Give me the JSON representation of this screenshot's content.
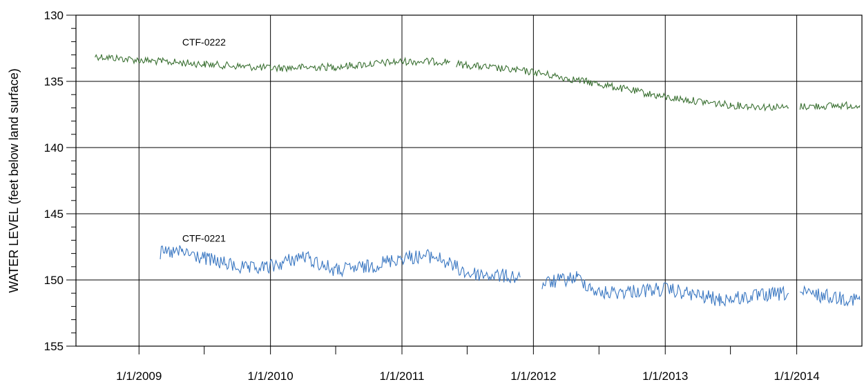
{
  "chart_data": {
    "type": "line",
    "title": "",
    "xlabel": "",
    "ylabel": "WATER LEVEL (feet below land surface)",
    "y_inverted": true,
    "ylim": [
      130,
      155
    ],
    "xlim": [
      "2008-07-10",
      "2014-07-01"
    ],
    "grid": true,
    "legend": "none",
    "y_ticks": [
      130,
      135,
      140,
      145,
      150,
      155
    ],
    "x_ticks": [
      {
        "label": "1/1/2009",
        "date": "2009-01-01"
      },
      {
        "label": "1/1/2010",
        "date": "2010-01-01"
      },
      {
        "label": "1/1/2011",
        "date": "2011-01-01"
      },
      {
        "label": "1/1/2012",
        "date": "2012-01-01"
      },
      {
        "label": "1/1/2013",
        "date": "2013-01-01"
      },
      {
        "label": "1/1/2014",
        "date": "2014-01-01"
      }
    ],
    "series": [
      {
        "name": "CTF-0222",
        "color": "#3a7032",
        "label_at": {
          "date": "2009-05-01",
          "value": 132.3
        },
        "segments": [
          [
            [
              "2008-09-01",
              133.1
            ],
            [
              "2009-01-01",
              133.4
            ],
            [
              "2009-07-01",
              133.7
            ],
            [
              "2010-01-01",
              134.0
            ],
            [
              "2010-07-01",
              133.9
            ],
            [
              "2011-01-01",
              133.5
            ],
            [
              "2011-05-15",
              133.5
            ]
          ],
          [
            [
              "2011-06-01",
              133.7
            ],
            [
              "2012-01-01",
              134.3
            ],
            [
              "2012-07-01",
              135.2
            ],
            [
              "2013-01-01",
              136.2
            ],
            [
              "2013-07-01",
              136.8
            ],
            [
              "2013-12-10",
              137.0
            ]
          ],
          [
            [
              "2014-01-10",
              136.9
            ],
            [
              "2014-06-25",
              136.8
            ]
          ]
        ]
      },
      {
        "name": "CTF-0221",
        "color": "#3b78c2",
        "label_at": {
          "date": "2009-05-01",
          "value": 147.1
        },
        "segments": [
          [
            [
              "2009-03-01",
              148.0
            ],
            [
              "2009-05-01",
              147.9
            ],
            [
              "2009-08-01",
              148.6
            ],
            [
              "2009-11-01",
              149.2
            ],
            [
              "2010-01-01",
              149.0
            ],
            [
              "2010-04-01",
              148.2
            ],
            [
              "2010-07-01",
              149.3
            ],
            [
              "2010-10-01",
              149.0
            ],
            [
              "2011-01-01",
              148.3
            ],
            [
              "2011-04-01",
              148.2
            ],
            [
              "2011-07-01",
              149.5
            ],
            [
              "2011-11-25",
              149.8
            ]
          ],
          [
            [
              "2012-01-25",
              150.3
            ],
            [
              "2012-05-01",
              149.8
            ],
            [
              "2012-07-01",
              151.0
            ],
            [
              "2013-01-01",
              150.7
            ],
            [
              "2013-06-01",
              151.5
            ],
            [
              "2013-12-10",
              151.0
            ]
          ],
          [
            [
              "2014-01-10",
              151.0
            ],
            [
              "2014-06-25",
              151.5
            ]
          ]
        ]
      }
    ]
  }
}
